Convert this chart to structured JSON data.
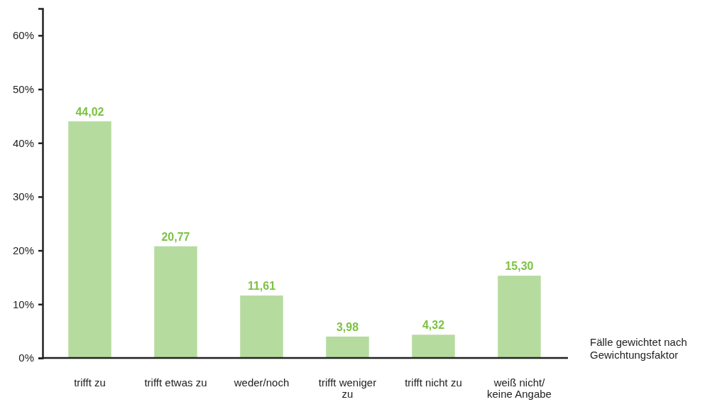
{
  "chart_data": {
    "type": "bar",
    "categories": [
      "trifft zu",
      "trifft etwas zu",
      "weder/noch",
      "trifft weniger zu",
      "trifft nicht zu",
      "weiß nicht/ keine Angabe"
    ],
    "values": [
      44.02,
      20.77,
      11.61,
      3.98,
      4.32,
      15.3
    ],
    "value_labels": [
      "44,02",
      "20,77",
      "11,61",
      "3,98",
      "4,32",
      "15,30"
    ],
    "color": "#b6db9e",
    "ylim": [
      0,
      65
    ],
    "yticks": [
      {
        "value": 0,
        "label": "0%"
      },
      {
        "value": 10,
        "label": "10%"
      },
      {
        "value": 20,
        "label": "20%"
      },
      {
        "value": 30,
        "label": "30%"
      },
      {
        "value": 40,
        "label": "40%"
      },
      {
        "value": 50,
        "label": "50%"
      },
      {
        "value": 60,
        "label": "60%"
      }
    ],
    "annotations": [
      "Fälle gewichtet nach Gewichtungsfaktor"
    ],
    "grid": false
  }
}
